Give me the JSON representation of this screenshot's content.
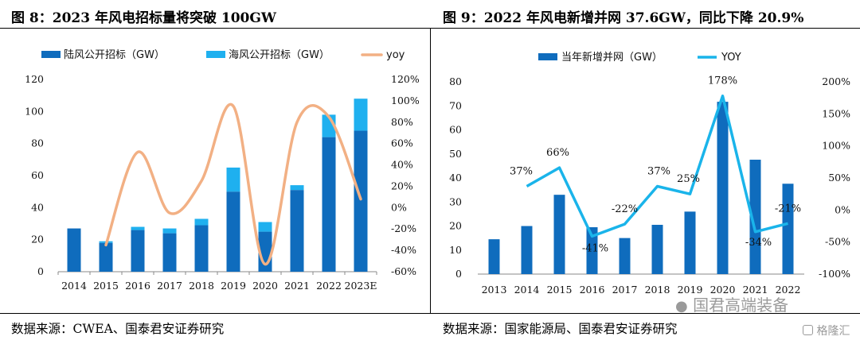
{
  "left_title": "图 8：2023 年风电招标量将突破 100GW",
  "right_title": "图 9：2022 年风电新增并网 37.6GW，同比下降 20.9%",
  "left_source": "数据来源：CWEA、国泰君安证券研究",
  "right_source": "数据来源：国家能源局、国泰君安证券研究",
  "watermark": {
    "account": "国君高端装备",
    "brand": "格隆汇"
  },
  "colors": {
    "dark_blue": "#0f6cbd",
    "light_blue": "#1fb0ef",
    "orange": "#f2b084",
    "line_blue": "#1ab4ea"
  },
  "chart_data": [
    {
      "type": "bar",
      "stacked": true,
      "categories": [
        "2014",
        "2015",
        "2016",
        "2017",
        "2018",
        "2019",
        "2020",
        "2021",
        "2022",
        "2023E"
      ],
      "series": [
        {
          "name": "陆风公开招标（GW）",
          "values": [
            27,
            18,
            26,
            24,
            29,
            50,
            25,
            51,
            84,
            88
          ]
        },
        {
          "name": "海风公开招标（GW）",
          "values": [
            0,
            1,
            2,
            3,
            4,
            15,
            6,
            3,
            14,
            20
          ]
        },
        {
          "name": "yoy",
          "axis": "right",
          "kind": "line",
          "x": [
            "2015",
            "2016",
            "2017",
            "2018",
            "2019",
            "2020",
            "2021",
            "2022",
            "2023E"
          ],
          "values": [
            -35,
            52,
            -5,
            25,
            95,
            -53,
            80,
            85,
            8
          ]
        }
      ],
      "y_left_ticks": [
        "0",
        "20",
        "40",
        "60",
        "80",
        "100",
        "120"
      ],
      "y_right_ticks": [
        "-60%",
        "-40%",
        "-20%",
        "0%",
        "20%",
        "40%",
        "60%",
        "80%",
        "100%",
        "120%"
      ],
      "ylim": [
        0,
        120
      ],
      "y2lim": [
        -60,
        120
      ],
      "legend": "top"
    },
    {
      "type": "bar",
      "categories": [
        "2013",
        "2014",
        "2015",
        "2016",
        "2017",
        "2018",
        "2019",
        "2020",
        "2021",
        "2022"
      ],
      "series": [
        {
          "name": "当年新增并网（GW）",
          "values": [
            14.5,
            20,
            33,
            19.5,
            15,
            20.5,
            26,
            71.7,
            47.6,
            37.6
          ]
        },
        {
          "name": "YOY",
          "axis": "right",
          "kind": "line",
          "x": [
            "2014",
            "2015",
            "2016",
            "2017",
            "2018",
            "2019",
            "2020",
            "2021",
            "2022"
          ],
          "values": [
            37,
            66,
            -41,
            -22,
            37,
            25,
            178,
            -34,
            -21
          ],
          "labels": [
            "37%",
            "66%",
            "-41%",
            "-22%",
            "37%",
            "25%",
            "178%",
            "-34%",
            "-21%"
          ]
        }
      ],
      "y_left_ticks": [
        "0",
        "10",
        "20",
        "30",
        "40",
        "50",
        "60",
        "70",
        "80"
      ],
      "y_right_ticks": [
        "-100%",
        "-50%",
        "0%",
        "50%",
        "100%",
        "150%",
        "200%"
      ],
      "ylim": [
        0,
        80
      ],
      "y2lim": [
        -100,
        200
      ],
      "legend": "top"
    }
  ]
}
